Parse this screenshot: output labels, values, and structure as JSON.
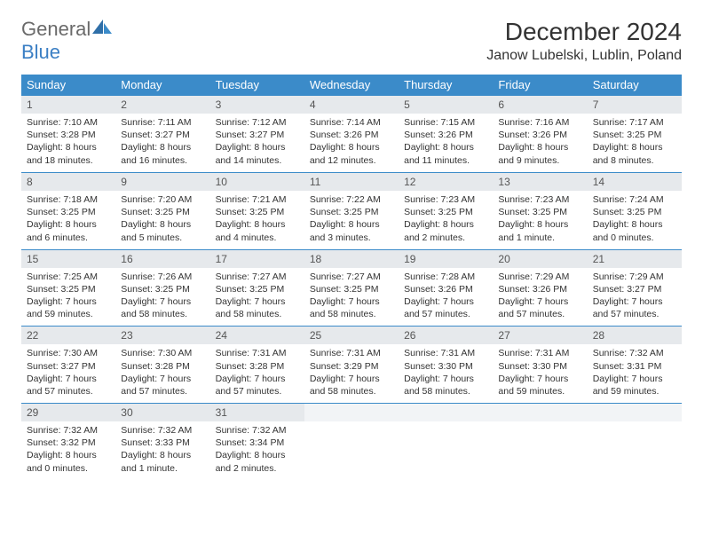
{
  "brand": {
    "general": "General",
    "blue": "Blue"
  },
  "title": "December 2024",
  "location": "Janow Lubelski, Lublin, Poland",
  "colors": {
    "header_bg": "#3b8bc9",
    "header_text": "#ffffff",
    "daynum_bg": "#e6e9ec",
    "daynum_border_top": "#3b8bc9",
    "body_text": "#333333",
    "logo_general": "#6a6a6a",
    "logo_blue": "#3b7fc4",
    "page_bg": "#ffffff"
  },
  "typography": {
    "month_title_fontsize": 28,
    "location_fontsize": 16,
    "dayheader_fontsize": 13,
    "daynum_fontsize": 12,
    "daydata_fontsize": 10.5
  },
  "day_headers": [
    "Sunday",
    "Monday",
    "Tuesday",
    "Wednesday",
    "Thursday",
    "Friday",
    "Saturday"
  ],
  "weeks": [
    [
      {
        "n": "1",
        "sr": "Sunrise: 7:10 AM",
        "ss": "Sunset: 3:28 PM",
        "d1": "Daylight: 8 hours",
        "d2": "and 18 minutes."
      },
      {
        "n": "2",
        "sr": "Sunrise: 7:11 AM",
        "ss": "Sunset: 3:27 PM",
        "d1": "Daylight: 8 hours",
        "d2": "and 16 minutes."
      },
      {
        "n": "3",
        "sr": "Sunrise: 7:12 AM",
        "ss": "Sunset: 3:27 PM",
        "d1": "Daylight: 8 hours",
        "d2": "and 14 minutes."
      },
      {
        "n": "4",
        "sr": "Sunrise: 7:14 AM",
        "ss": "Sunset: 3:26 PM",
        "d1": "Daylight: 8 hours",
        "d2": "and 12 minutes."
      },
      {
        "n": "5",
        "sr": "Sunrise: 7:15 AM",
        "ss": "Sunset: 3:26 PM",
        "d1": "Daylight: 8 hours",
        "d2": "and 11 minutes."
      },
      {
        "n": "6",
        "sr": "Sunrise: 7:16 AM",
        "ss": "Sunset: 3:26 PM",
        "d1": "Daylight: 8 hours",
        "d2": "and 9 minutes."
      },
      {
        "n": "7",
        "sr": "Sunrise: 7:17 AM",
        "ss": "Sunset: 3:25 PM",
        "d1": "Daylight: 8 hours",
        "d2": "and 8 minutes."
      }
    ],
    [
      {
        "n": "8",
        "sr": "Sunrise: 7:18 AM",
        "ss": "Sunset: 3:25 PM",
        "d1": "Daylight: 8 hours",
        "d2": "and 6 minutes."
      },
      {
        "n": "9",
        "sr": "Sunrise: 7:20 AM",
        "ss": "Sunset: 3:25 PM",
        "d1": "Daylight: 8 hours",
        "d2": "and 5 minutes."
      },
      {
        "n": "10",
        "sr": "Sunrise: 7:21 AM",
        "ss": "Sunset: 3:25 PM",
        "d1": "Daylight: 8 hours",
        "d2": "and 4 minutes."
      },
      {
        "n": "11",
        "sr": "Sunrise: 7:22 AM",
        "ss": "Sunset: 3:25 PM",
        "d1": "Daylight: 8 hours",
        "d2": "and 3 minutes."
      },
      {
        "n": "12",
        "sr": "Sunrise: 7:23 AM",
        "ss": "Sunset: 3:25 PM",
        "d1": "Daylight: 8 hours",
        "d2": "and 2 minutes."
      },
      {
        "n": "13",
        "sr": "Sunrise: 7:23 AM",
        "ss": "Sunset: 3:25 PM",
        "d1": "Daylight: 8 hours",
        "d2": "and 1 minute."
      },
      {
        "n": "14",
        "sr": "Sunrise: 7:24 AM",
        "ss": "Sunset: 3:25 PM",
        "d1": "Daylight: 8 hours",
        "d2": "and 0 minutes."
      }
    ],
    [
      {
        "n": "15",
        "sr": "Sunrise: 7:25 AM",
        "ss": "Sunset: 3:25 PM",
        "d1": "Daylight: 7 hours",
        "d2": "and 59 minutes."
      },
      {
        "n": "16",
        "sr": "Sunrise: 7:26 AM",
        "ss": "Sunset: 3:25 PM",
        "d1": "Daylight: 7 hours",
        "d2": "and 58 minutes."
      },
      {
        "n": "17",
        "sr": "Sunrise: 7:27 AM",
        "ss": "Sunset: 3:25 PM",
        "d1": "Daylight: 7 hours",
        "d2": "and 58 minutes."
      },
      {
        "n": "18",
        "sr": "Sunrise: 7:27 AM",
        "ss": "Sunset: 3:25 PM",
        "d1": "Daylight: 7 hours",
        "d2": "and 58 minutes."
      },
      {
        "n": "19",
        "sr": "Sunrise: 7:28 AM",
        "ss": "Sunset: 3:26 PM",
        "d1": "Daylight: 7 hours",
        "d2": "and 57 minutes."
      },
      {
        "n": "20",
        "sr": "Sunrise: 7:29 AM",
        "ss": "Sunset: 3:26 PM",
        "d1": "Daylight: 7 hours",
        "d2": "and 57 minutes."
      },
      {
        "n": "21",
        "sr": "Sunrise: 7:29 AM",
        "ss": "Sunset: 3:27 PM",
        "d1": "Daylight: 7 hours",
        "d2": "and 57 minutes."
      }
    ],
    [
      {
        "n": "22",
        "sr": "Sunrise: 7:30 AM",
        "ss": "Sunset: 3:27 PM",
        "d1": "Daylight: 7 hours",
        "d2": "and 57 minutes."
      },
      {
        "n": "23",
        "sr": "Sunrise: 7:30 AM",
        "ss": "Sunset: 3:28 PM",
        "d1": "Daylight: 7 hours",
        "d2": "and 57 minutes."
      },
      {
        "n": "24",
        "sr": "Sunrise: 7:31 AM",
        "ss": "Sunset: 3:28 PM",
        "d1": "Daylight: 7 hours",
        "d2": "and 57 minutes."
      },
      {
        "n": "25",
        "sr": "Sunrise: 7:31 AM",
        "ss": "Sunset: 3:29 PM",
        "d1": "Daylight: 7 hours",
        "d2": "and 58 minutes."
      },
      {
        "n": "26",
        "sr": "Sunrise: 7:31 AM",
        "ss": "Sunset: 3:30 PM",
        "d1": "Daylight: 7 hours",
        "d2": "and 58 minutes."
      },
      {
        "n": "27",
        "sr": "Sunrise: 7:31 AM",
        "ss": "Sunset: 3:30 PM",
        "d1": "Daylight: 7 hours",
        "d2": "and 59 minutes."
      },
      {
        "n": "28",
        "sr": "Sunrise: 7:32 AM",
        "ss": "Sunset: 3:31 PM",
        "d1": "Daylight: 7 hours",
        "d2": "and 59 minutes."
      }
    ],
    [
      {
        "n": "29",
        "sr": "Sunrise: 7:32 AM",
        "ss": "Sunset: 3:32 PM",
        "d1": "Daylight: 8 hours",
        "d2": "and 0 minutes."
      },
      {
        "n": "30",
        "sr": "Sunrise: 7:32 AM",
        "ss": "Sunset: 3:33 PM",
        "d1": "Daylight: 8 hours",
        "d2": "and 1 minute."
      },
      {
        "n": "31",
        "sr": "Sunrise: 7:32 AM",
        "ss": "Sunset: 3:34 PM",
        "d1": "Daylight: 8 hours",
        "d2": "and 2 minutes."
      },
      null,
      null,
      null,
      null
    ]
  ]
}
